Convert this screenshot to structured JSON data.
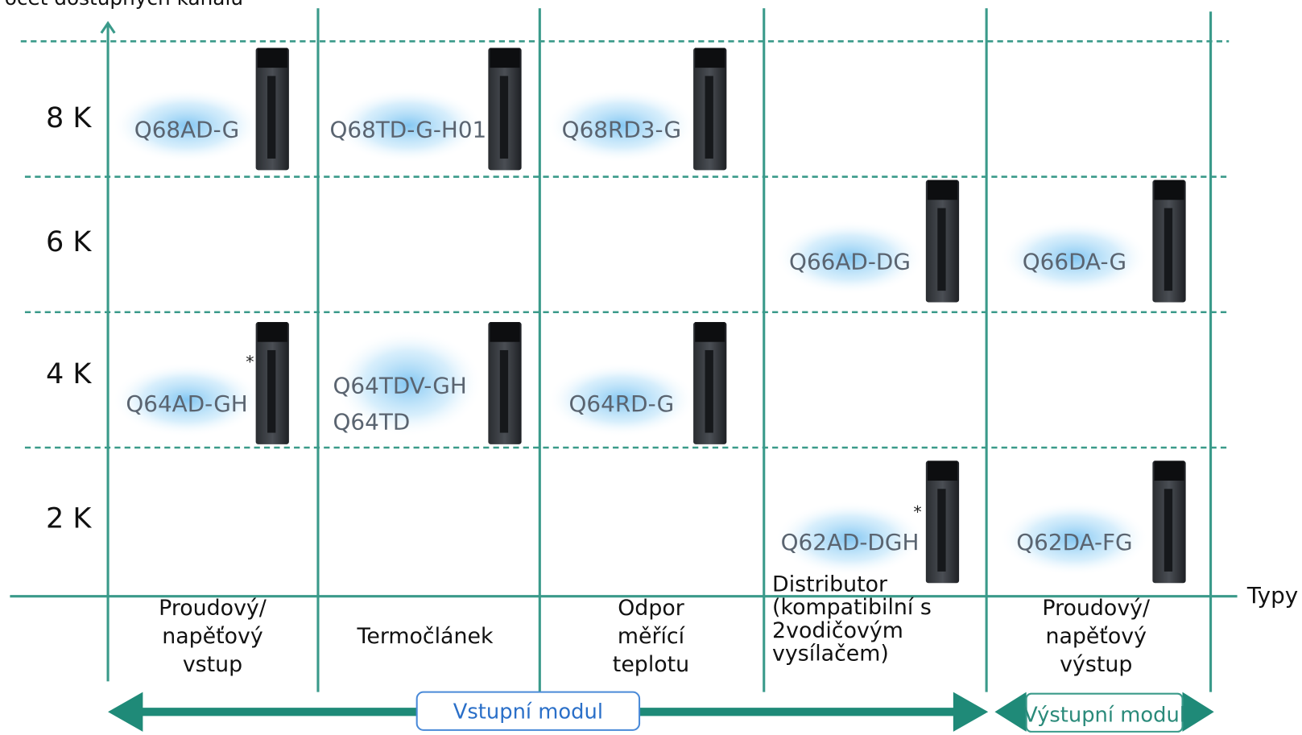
{
  "y_axis_title": "Počet dostupných kanálů",
  "x_axis_title": "Typy",
  "rows": [
    {
      "label": "8 K",
      "cells": [
        [
          "Q68AD-G"
        ],
        [
          "Q68TD-G-H01"
        ],
        [
          "Q68RD3-G"
        ],
        [],
        []
      ]
    },
    {
      "label": "6 K",
      "cells": [
        [],
        [],
        [],
        [
          "Q66AD-DG"
        ],
        [
          "Q66DA-G"
        ]
      ]
    },
    {
      "label": "4 K",
      "cells": [
        [
          "Q64AD-GH"
        ],
        [
          "Q64TDV-GH",
          "Q64TD"
        ],
        [
          "Q64RD-G"
        ],
        [],
        []
      ]
    },
    {
      "label": "2 K",
      "cells": [
        [],
        [],
        [],
        [
          "Q62AD-DGH"
        ],
        [
          "Q62DA-FG"
        ]
      ]
    }
  ],
  "columns": [
    {
      "label_lines": [
        "Proudový/",
        "napěťový",
        "vstup"
      ]
    },
    {
      "label_lines": [
        "Termočlánek"
      ]
    },
    {
      "label_lines": [
        "Odpor",
        "měřící",
        "teplotu"
      ]
    },
    {
      "label_lines": [
        "Distributor",
        "(kompatibilní s",
        "2vodičovým",
        "vysílačem)"
      ]
    },
    {
      "label_lines": [
        "Proudový/",
        "napěťový",
        "výstup"
      ]
    }
  ],
  "groups": [
    {
      "label": "Vstupní modul"
    },
    {
      "label": "Výstupní modul"
    }
  ],
  "footnote_mark": "*"
}
